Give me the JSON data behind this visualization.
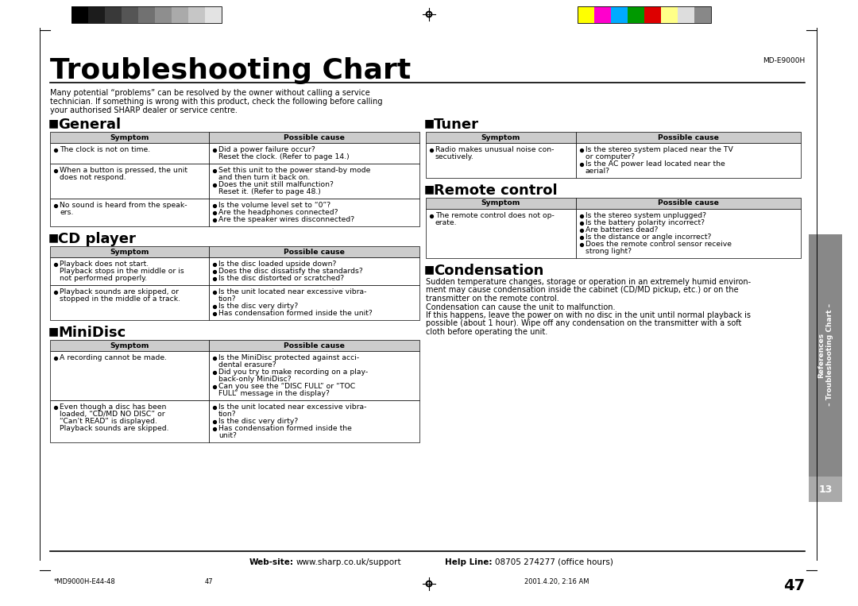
{
  "title": "Troubleshooting Chart",
  "model": "MD-E9000H",
  "intro": "Many potential “problems” can be resolved by the owner without calling a service\ntechnician. If something is wrong with this product, check the following before calling\nyour authorised SHARP dealer or service centre.",
  "page_number": "47",
  "footer_left": "*MD9000H-E44-48",
  "footer_center": "47",
  "footer_right": "2001.4.20, 2:16 AM",
  "footer_web": "Web-site:",
  "footer_web2": "www.sharp.co.uk/support",
  "footer_help": "Help Line:",
  "footer_help2": "08705 274277 (office hours)",
  "sections": [
    {
      "title": "General",
      "rows": [
        {
          "symptom": [
            "The clock is not on time."
          ],
          "cause": [
            "Did a power failure occur?",
            "Reset the clock. (Refer to page 14.)"
          ],
          "cause_bullets": [
            true,
            false
          ]
        },
        {
          "symptom": [
            "When a button is pressed, the unit",
            "does not respond."
          ],
          "cause": [
            "Set this unit to the power stand-by mode",
            "and then turn it back on.",
            "Does the unit still malfunction?",
            "Reset it. (Refer to page 48.)"
          ],
          "cause_bullets": [
            true,
            false,
            true,
            false
          ]
        },
        {
          "symptom": [
            "No sound is heard from the speak-",
            "ers."
          ],
          "cause": [
            "Is the volume level set to “0”?",
            "Are the headphones connected?",
            "Are the speaker wires disconnected?"
          ],
          "cause_bullets": [
            true,
            true,
            true
          ]
        }
      ]
    },
    {
      "title": "CD player",
      "rows": [
        {
          "symptom": [
            "Playback does not start.",
            "Playback stops in the middle or is",
            "not performed properly."
          ],
          "cause": [
            "Is the disc loaded upside down?",
            "Does the disc dissatisfy the standards?",
            "Is the disc distorted or scratched?"
          ],
          "cause_bullets": [
            true,
            true,
            true
          ]
        },
        {
          "symptom": [
            "Playback sounds are skipped, or",
            "stopped in the middle of a track."
          ],
          "cause": [
            "Is the unit located near excessive vibra-",
            "tion?",
            "Is the disc very dirty?",
            "Has condensation formed inside the unit?"
          ],
          "cause_bullets": [
            true,
            false,
            true,
            true
          ]
        }
      ]
    },
    {
      "title": "MiniDisc",
      "rows": [
        {
          "symptom": [
            "A recording cannot be made."
          ],
          "cause": [
            "Is the MiniDisc protected against acci-",
            "dental erasure?",
            "Did you try to make recording on a play-",
            "back-only MiniDisc?",
            "Can you see the “DISC FULL” or “TOC",
            "FULL” message in the display?"
          ],
          "cause_bullets": [
            true,
            false,
            true,
            false,
            true,
            false
          ]
        },
        {
          "symptom": [
            "Even though a disc has been",
            "loaded, “CD/MD NO DISC” or",
            "“Can’t READ” is displayed.",
            "Playback sounds are skipped."
          ],
          "cause": [
            "Is the unit located near excessive vibra-",
            "tion?",
            "Is the disc very dirty?",
            "Has condensation formed inside the",
            "unit?"
          ],
          "cause_bullets": [
            true,
            false,
            true,
            true,
            false
          ]
        }
      ]
    }
  ],
  "right_sections": [
    {
      "title": "Tuner",
      "rows": [
        {
          "symptom": [
            "Radio makes unusual noise con-",
            "secutively."
          ],
          "cause": [
            "Is the stereo system placed near the TV",
            "or computer?",
            "Is the AC power lead located near the",
            "aerial?"
          ],
          "cause_bullets": [
            true,
            false,
            true,
            false
          ]
        }
      ]
    },
    {
      "title": "Remote control",
      "rows": [
        {
          "symptom": [
            "The remote control does not op-",
            "erate."
          ],
          "cause": [
            "Is the stereo system unplugged?",
            "Is the battery polarity incorrect?",
            "Are batteries dead?",
            "Is the distance or angle incorrect?",
            "Does the remote control sensor receive",
            "strong light?"
          ],
          "cause_bullets": [
            true,
            true,
            true,
            true,
            true,
            false
          ]
        }
      ]
    }
  ],
  "condensation_title": "Condensation",
  "condensation_text": [
    "Sudden temperature changes, storage or operation in an extremely humid environ-",
    "ment may cause condensation inside the cabinet (CD/MD pickup, etc.) or on the",
    "transmitter on the remote control.",
    "Condensation can cause the unit to malfunction.",
    "If this happens, leave the power on with no disc in the unit until normal playback is",
    "possible (about 1 hour). Wipe off any condensation on the transmitter with a soft",
    "cloth before operating the unit."
  ],
  "bg_color": "#ffffff",
  "table_header_bg": "#cccccc",
  "table_border": "#000000",
  "right_tab_bg": "#888888",
  "right_tab_box_bg": "#aaaaaa"
}
